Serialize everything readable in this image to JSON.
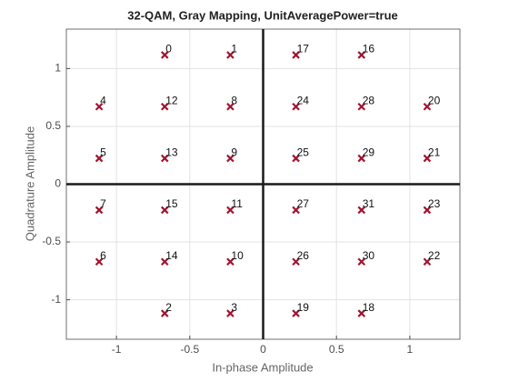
{
  "chart_data": {
    "type": "scatter",
    "title": "32-QAM, Gray Mapping, UnitAveragePower=true",
    "x_label": "In-phase Amplitude",
    "y_label": "Quadrature Amplitude",
    "series": [
      {
        "color": "#a2142f",
        "x": [
          -0.6708,
          -0.2236,
          -0.6708,
          -0.2236,
          -1.118,
          -1.118,
          -1.118,
          -1.118,
          -0.2236,
          -0.2236,
          -0.2236,
          -0.2236,
          -0.6708,
          -0.6708,
          -0.6708,
          -0.6708,
          0.6708,
          0.2236,
          0.6708,
          0.2236,
          1.118,
          1.118,
          1.118,
          1.118,
          0.2236,
          0.2236,
          0.2236,
          0.2236,
          0.6708,
          0.6708,
          0.6708,
          0.6708
        ],
        "values": [
          1.118,
          1.118,
          -1.118,
          -1.118,
          0.6708,
          0.2236,
          -0.6708,
          -0.2236,
          0.6708,
          0.2236,
          -0.6708,
          -0.2236,
          0.6708,
          0.2236,
          -0.6708,
          -0.2236,
          1.118,
          1.118,
          -1.118,
          -1.118,
          0.6708,
          0.2236,
          -0.6708,
          -0.2236,
          0.6708,
          0.2236,
          -0.6708,
          -0.2236,
          0.6708,
          0.2236,
          -0.6708,
          -0.2236
        ],
        "labels": [
          "0",
          "1",
          "2",
          "3",
          "4",
          "5",
          "6",
          "7",
          "8",
          "9",
          "10",
          "11",
          "12",
          "13",
          "14",
          "15",
          "16",
          "17",
          "18",
          "19",
          "20",
          "21",
          "22",
          "23",
          "24",
          "25",
          "26",
          "27",
          "28",
          "29",
          "30",
          "31"
        ]
      }
    ],
    "xlim": [
      -1.3416,
      1.3416
    ],
    "ylim": [
      -1.3416,
      1.3416
    ],
    "xticks": [
      -1,
      -0.5,
      0,
      0.5,
      1
    ],
    "yticks": [
      -1,
      -0.5,
      0,
      0.5,
      1
    ],
    "grid": true,
    "zero_lines": true
  }
}
